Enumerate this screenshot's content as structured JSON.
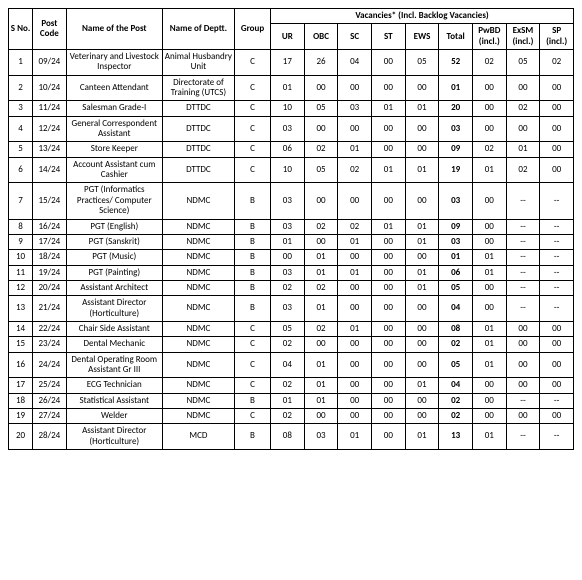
{
  "headers": {
    "sno": "S No.",
    "postcode": "Post Code",
    "postname": "Name of the Post",
    "dept": "Name of Deptt.",
    "group": "Group",
    "vacancies_title": "Vacancies*  (Incl. Backlog Vacancies)",
    "ur": "UR",
    "obc": "OBC",
    "sc": "SC",
    "st": "ST",
    "ews": "EWS",
    "total": "Total",
    "pwbd": "PwBD (incl.)",
    "exsm": "ExSM (incl.)",
    "sp": "SP (incl.)"
  },
  "rows": [
    {
      "sno": "1",
      "code": "09/24",
      "name": "Veterinary and Livestock Inspector",
      "dept": "Animal Husbandry Unit",
      "group": "C",
      "ur": "17",
      "obc": "26",
      "sc": "04",
      "st": "00",
      "ews": "05",
      "total": "52",
      "pwbd": "02",
      "exsm": "05",
      "sp": "02"
    },
    {
      "sno": "2",
      "code": "10/24",
      "name": "Canteen Attendant",
      "dept": "Directorate of Training (UTCS)",
      "group": "C",
      "ur": "01",
      "obc": "00",
      "sc": "00",
      "st": "00",
      "ews": "00",
      "total": "01",
      "pwbd": "00",
      "exsm": "00",
      "sp": "00"
    },
    {
      "sno": "3",
      "code": "11/24",
      "name": "Salesman Grade-I",
      "dept": "DTTDC",
      "group": "C",
      "ur": "10",
      "obc": "05",
      "sc": "03",
      "st": "01",
      "ews": "01",
      "total": "20",
      "pwbd": "00",
      "exsm": "02",
      "sp": "00"
    },
    {
      "sno": "4",
      "code": "12/24",
      "name": "General Correspondent Assistant",
      "dept": "DTTDC",
      "group": "C",
      "ur": "03",
      "obc": "00",
      "sc": "00",
      "st": "00",
      "ews": "00",
      "total": "03",
      "pwbd": "00",
      "exsm": "00",
      "sp": "00"
    },
    {
      "sno": "5",
      "code": "13/24",
      "name": "Store Keeper",
      "dept": "DTTDC",
      "group": "C",
      "ur": "06",
      "obc": "02",
      "sc": "01",
      "st": "00",
      "ews": "00",
      "total": "09",
      "pwbd": "02",
      "exsm": "01",
      "sp": "00"
    },
    {
      "sno": "6",
      "code": "14/24",
      "name": "Account Assistant cum Cashier",
      "dept": "DTTDC",
      "group": "C",
      "ur": "10",
      "obc": "05",
      "sc": "02",
      "st": "01",
      "ews": "01",
      "total": "19",
      "pwbd": "01",
      "exsm": "02",
      "sp": "00"
    },
    {
      "sno": "7",
      "code": "15/24",
      "name": "PGT (Informatics Practices/ Computer Science)",
      "dept": "NDMC",
      "group": "B",
      "ur": "03",
      "obc": "00",
      "sc": "00",
      "st": "00",
      "ews": "00",
      "total": "03",
      "pwbd": "00",
      "exsm": "--",
      "sp": "--"
    },
    {
      "sno": "8",
      "code": "16/24",
      "name": "PGT (English)",
      "dept": "NDMC",
      "group": "B",
      "ur": "03",
      "obc": "02",
      "sc": "02",
      "st": "01",
      "ews": "01",
      "total": "09",
      "pwbd": "00",
      "exsm": "--",
      "sp": "--"
    },
    {
      "sno": "9",
      "code": "17/24",
      "name": "PGT (Sanskrit)",
      "dept": "NDMC",
      "group": "B",
      "ur": "01",
      "obc": "00",
      "sc": "01",
      "st": "00",
      "ews": "01",
      "total": "03",
      "pwbd": "00",
      "exsm": "--",
      "sp": "--"
    },
    {
      "sno": "10",
      "code": "18/24",
      "name": "PGT (Music)",
      "dept": "NDMC",
      "group": "B",
      "ur": "00",
      "obc": "01",
      "sc": "00",
      "st": "00",
      "ews": "00",
      "total": "01",
      "pwbd": "01",
      "exsm": "--",
      "sp": "--"
    },
    {
      "sno": "11",
      "code": "19/24",
      "name": "PGT (Painting)",
      "dept": "NDMC",
      "group": "B",
      "ur": "03",
      "obc": "01",
      "sc": "01",
      "st": "00",
      "ews": "01",
      "total": "06",
      "pwbd": "01",
      "exsm": "--",
      "sp": "--"
    },
    {
      "sno": "12",
      "code": "20/24",
      "name": "Assistant Architect",
      "dept": "NDMC",
      "group": "B",
      "ur": "02",
      "obc": "02",
      "sc": "00",
      "st": "00",
      "ews": "01",
      "total": "05",
      "pwbd": "00",
      "exsm": "--",
      "sp": "--"
    },
    {
      "sno": "13",
      "code": "21/24",
      "name": "Assistant Director (Horticulture)",
      "dept": "NDMC",
      "group": "B",
      "ur": "03",
      "obc": "01",
      "sc": "00",
      "st": "00",
      "ews": "00",
      "total": "04",
      "pwbd": "00",
      "exsm": "--",
      "sp": "--"
    },
    {
      "sno": "14",
      "code": "22/24",
      "name": "Chair Side Assistant",
      "dept": "NDMC",
      "group": "C",
      "ur": "05",
      "obc": "02",
      "sc": "01",
      "st": "00",
      "ews": "00",
      "total": "08",
      "pwbd": "01",
      "exsm": "00",
      "sp": "00"
    },
    {
      "sno": "15",
      "code": "23/24",
      "name": "Dental Mechanic",
      "dept": "NDMC",
      "group": "C",
      "ur": "02",
      "obc": "00",
      "sc": "00",
      "st": "00",
      "ews": "00",
      "total": "02",
      "pwbd": "01",
      "exsm": "00",
      "sp": "00"
    },
    {
      "sno": "16",
      "code": "24/24",
      "name": "Dental Operating Room Assistant Gr III",
      "dept": "NDMC",
      "group": "C",
      "ur": "04",
      "obc": "01",
      "sc": "00",
      "st": "00",
      "ews": "00",
      "total": "05",
      "pwbd": "01",
      "exsm": "00",
      "sp": "00"
    },
    {
      "sno": "17",
      "code": "25/24",
      "name": "ECG Technician",
      "dept": "NDMC",
      "group": "C",
      "ur": "02",
      "obc": "01",
      "sc": "00",
      "st": "00",
      "ews": "01",
      "total": "04",
      "pwbd": "00",
      "exsm": "00",
      "sp": "00"
    },
    {
      "sno": "18",
      "code": "26/24",
      "name": "Statistical Assistant",
      "dept": "NDMC",
      "group": "B",
      "ur": "01",
      "obc": "01",
      "sc": "00",
      "st": "00",
      "ews": "00",
      "total": "02",
      "pwbd": "00",
      "exsm": "--",
      "sp": "--"
    },
    {
      "sno": "19",
      "code": "27/24",
      "name": "Welder",
      "dept": "NDMC",
      "group": "C",
      "ur": "02",
      "obc": "00",
      "sc": "00",
      "st": "00",
      "ews": "00",
      "total": "02",
      "pwbd": "00",
      "exsm": "00",
      "sp": "00"
    },
    {
      "sno": "20",
      "code": "28/24",
      "name": "Assistant Director (Horticulture)",
      "dept": "MCD",
      "group": "B",
      "ur": "08",
      "obc": "03",
      "sc": "01",
      "st": "00",
      "ews": "01",
      "total": "13",
      "pwbd": "01",
      "exsm": "--",
      "sp": "--"
    }
  ]
}
